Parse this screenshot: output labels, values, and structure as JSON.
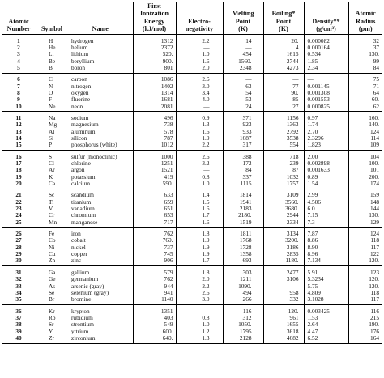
{
  "headers": {
    "number": "Atomic\nNumber",
    "symbol": "Symbol",
    "name": "Name",
    "ionization": "First\nIonization\nEnergy\n(kJ/mol)",
    "electroneg": "Electro-\nnegativity",
    "melting": "Melting\nPoint\n(K)",
    "boiling": "Boiling*\nPoint\n(K)",
    "density": "Density**\n(g/cm³)",
    "radius": "Atomic\nRadius\n(pm)"
  },
  "groups": [
    [
      [
        "1",
        "H",
        "hydrogen",
        "1312",
        "2.2",
        "14",
        "20.",
        "0.000082",
        "32"
      ],
      [
        "2",
        "He",
        "helium",
        "2372",
        "—",
        "—",
        "4",
        "0.000164",
        "37"
      ],
      [
        "3",
        "Li",
        "lithium",
        "520.",
        "1.0",
        "454",
        "1615",
        "0.534",
        "130."
      ],
      [
        "4",
        "Be",
        "beryllium",
        "900.",
        "1.6",
        "1560.",
        "2744",
        "1.85",
        "99"
      ],
      [
        "5",
        "B",
        "boron",
        "801",
        "2.0",
        "2348",
        "4273",
        "2.34",
        "84"
      ]
    ],
    [
      [
        "6",
        "C",
        "carbon",
        "1086",
        "2.6",
        "—",
        "—",
        "—",
        "75"
      ],
      [
        "7",
        "N",
        "nitrogen",
        "1402",
        "3.0",
        "63",
        "77",
        "0.001145",
        "71"
      ],
      [
        "8",
        "O",
        "oxygen",
        "1314",
        "3.4",
        "54",
        "90.",
        "0.001308",
        "64"
      ],
      [
        "9",
        "F",
        "fluorine",
        "1681",
        "4.0",
        "53",
        "85",
        "0.001553",
        "60."
      ],
      [
        "10",
        "Ne",
        "neon",
        "2081",
        "—",
        "24",
        "27",
        "0.000825",
        "62"
      ]
    ],
    [
      [
        "11",
        "Na",
        "sodium",
        "496",
        "0.9",
        "371",
        "1156",
        "0.97",
        "160."
      ],
      [
        "12",
        "Mg",
        "magnesium",
        "738",
        "1.3",
        "923",
        "1363",
        "1.74",
        "140."
      ],
      [
        "13",
        "Al",
        "aluminum",
        "578",
        "1.6",
        "933",
        "2792",
        "2.70",
        "124"
      ],
      [
        "14",
        "Si",
        "silicon",
        "787",
        "1.9",
        "1687",
        "3538",
        "2.3296",
        "114"
      ],
      [
        "15",
        "P",
        "phosphorus (white)",
        "1012",
        "2.2",
        "317",
        "554",
        "1.823",
        "109"
      ]
    ],
    [
      [
        "16",
        "S",
        "sulfur (monoclinic)",
        "1000",
        "2.6",
        "388",
        "718",
        "2.00",
        "104"
      ],
      [
        "17",
        "Cl",
        "chlorine",
        "1251",
        "3.2",
        "172",
        "239",
        "0.002898",
        "100."
      ],
      [
        "18",
        "Ar",
        "argon",
        "1521",
        "—",
        "84",
        "87",
        "0.001633",
        "101"
      ],
      [
        "19",
        "K",
        "potassium",
        "419",
        "0.8",
        "337",
        "1032",
        "0.89",
        "200."
      ],
      [
        "20",
        "Ca",
        "calcium",
        "590.",
        "1.0",
        "1115",
        "1757",
        "1.54",
        "174"
      ]
    ],
    [
      [
        "21",
        "Sc",
        "scandium",
        "633",
        "1.4",
        "1814",
        "3109",
        "2.99",
        "159"
      ],
      [
        "22",
        "Ti",
        "titanium",
        "659",
        "1.5",
        "1941",
        "3560.",
        "4.506",
        "148"
      ],
      [
        "23",
        "V",
        "vanadium",
        "651",
        "1.6",
        "2183",
        "3680.",
        "6.0",
        "144"
      ],
      [
        "24",
        "Cr",
        "chromium",
        "653",
        "1.7",
        "2180.",
        "2944",
        "7.15",
        "130."
      ],
      [
        "25",
        "Mn",
        "manganese",
        "717",
        "1.6",
        "1519",
        "2334",
        "7.3",
        "129"
      ]
    ],
    [
      [
        "26",
        "Fe",
        "iron",
        "762",
        "1.8",
        "1811",
        "3134",
        "7.87",
        "124"
      ],
      [
        "27",
        "Co",
        "cobalt",
        "760.",
        "1.9",
        "1768",
        "3200.",
        "8.86",
        "118"
      ],
      [
        "28",
        "Ni",
        "nickel",
        "737",
        "1.9",
        "1728",
        "3186",
        "8.90",
        "117"
      ],
      [
        "29",
        "Cu",
        "copper",
        "745",
        "1.9",
        "1358",
        "2835",
        "8.96",
        "122"
      ],
      [
        "30",
        "Zn",
        "zinc",
        "906",
        "1.7",
        "693",
        "1180.",
        "7.134",
        "120."
      ]
    ],
    [
      [
        "31",
        "Ga",
        "gallium",
        "579",
        "1.8",
        "303",
        "2477",
        "5.91",
        "123"
      ],
      [
        "32",
        "Ge",
        "germanium",
        "762",
        "2.0",
        "1211",
        "3106",
        "5.3234",
        "120."
      ],
      [
        "33",
        "As",
        "arsenic (gray)",
        "944",
        "2.2",
        "1090.",
        "—",
        "5.75",
        "120."
      ],
      [
        "34",
        "Se",
        "selenium (gray)",
        "941",
        "2.6",
        "494",
        "958",
        "4.809",
        "118"
      ],
      [
        "35",
        "Br",
        "bromine",
        "1140",
        "3.0",
        "266",
        "332",
        "3.1028",
        "117"
      ]
    ],
    [
      [
        "36",
        "Kr",
        "krypton",
        "1351",
        "—",
        "116",
        "120.",
        "0.003425",
        "116"
      ],
      [
        "37",
        "Rb",
        "rubidium",
        "403",
        "0.8",
        "312",
        "961",
        "1.53",
        "215"
      ],
      [
        "38",
        "Sr",
        "strontium",
        "549",
        "1.0",
        "1050.",
        "1655",
        "2.64",
        "190."
      ],
      [
        "39",
        "Y",
        "yttrium",
        "600.",
        "1.2",
        "1795",
        "3618",
        "4.47",
        "176"
      ],
      [
        "40",
        "Zr",
        "zirconium",
        "640.",
        "1.3",
        "2128",
        "4682",
        "6.52",
        "164"
      ]
    ]
  ]
}
